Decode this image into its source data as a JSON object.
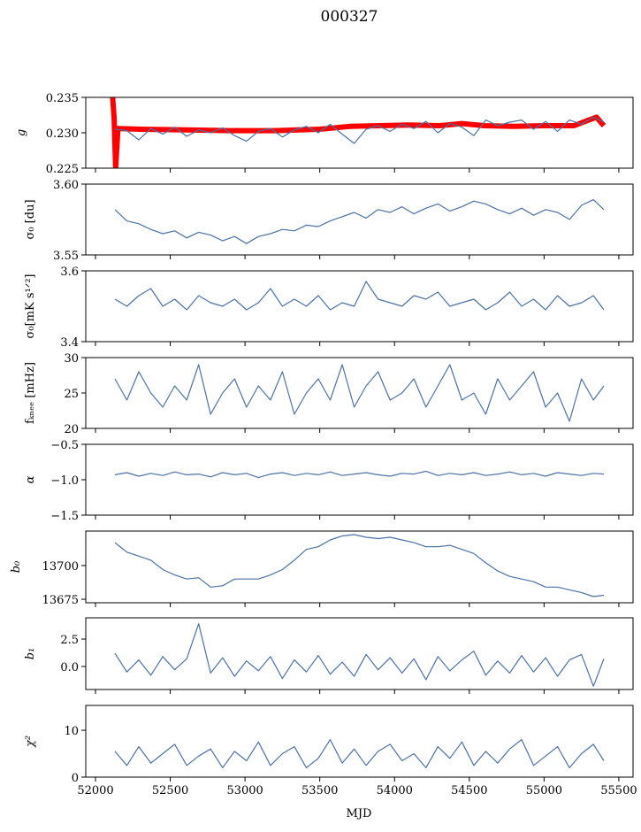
{
  "chart_data": {
    "type": "line",
    "title": "000327",
    "xlabel": "MJD",
    "xlim": [
      51935,
      55595
    ],
    "xticks": [
      52000,
      52500,
      53000,
      53500,
      54000,
      54500,
      55000,
      55500
    ],
    "x": [
      52130,
      52210,
      52290,
      52370,
      52450,
      52530,
      52610,
      52690,
      52770,
      52850,
      52930,
      53010,
      53090,
      53170,
      53250,
      53330,
      53410,
      53490,
      53570,
      53650,
      53730,
      53810,
      53890,
      53970,
      54050,
      54130,
      54210,
      54290,
      54370,
      54450,
      54530,
      54610,
      54690,
      54770,
      54850,
      54930,
      55010,
      55090,
      55170,
      55250,
      55330,
      55400
    ],
    "panels": [
      {
        "ylabel": "g",
        "ylim": [
          0.225,
          0.235
        ],
        "yticks": [
          0.225,
          0.23,
          0.235
        ],
        "yticklabels": [
          "0.225",
          "0.230",
          "0.235"
        ],
        "series": [
          {
            "name": "model",
            "color": "#ff0000",
            "width": 6,
            "x": [
              52115,
              52125,
              52135,
              52150,
              52300,
              52600,
              52900,
              53200,
              53500,
              53700,
              53900,
              54100,
              54300,
              54450,
              54600,
              54800,
              55000,
              55200,
              55300,
              55350,
              55400
            ],
            "values": [
              0.235,
              0.232,
              0.225,
              0.2306,
              0.2305,
              0.2304,
              0.2303,
              0.2303,
              0.2305,
              0.2309,
              0.231,
              0.2311,
              0.231,
              0.2313,
              0.231,
              0.2309,
              0.231,
              0.231,
              0.2318,
              0.2322,
              0.231
            ]
          },
          {
            "name": "gain",
            "color": "#4c72a6",
            "width": 1.2,
            "values": [
              0.2305,
              0.2303,
              0.229,
              0.2306,
              0.2298,
              0.2308,
              0.2295,
              0.2304,
              0.23,
              0.2307,
              0.2296,
              0.2288,
              0.2302,
              0.2306,
              0.2294,
              0.2304,
              0.2309,
              0.23,
              0.2312,
              0.2298,
              0.2285,
              0.2305,
              0.231,
              0.2302,
              0.2312,
              0.2306,
              0.2316,
              0.23,
              0.2313,
              0.2308,
              0.2296,
              0.2318,
              0.231,
              0.2315,
              0.2318,
              0.2305,
              0.2316,
              0.2302,
              0.2318,
              0.2312,
              0.2322,
              0.2315
            ]
          }
        ]
      },
      {
        "ylabel": "σ₀ [du]",
        "ylim": [
          3.55,
          3.6
        ],
        "yticks": [
          3.55,
          3.6
        ],
        "yticklabels": [
          "3.55",
          "3.60"
        ],
        "series": [
          {
            "name": "sigma0_du",
            "color": "#4c72a6",
            "width": 1.2,
            "values": [
              3.582,
              3.574,
              3.572,
              3.568,
              3.565,
              3.567,
              3.562,
              3.566,
              3.564,
              3.56,
              3.563,
              3.558,
              3.563,
              3.565,
              3.568,
              3.567,
              3.571,
              3.57,
              3.574,
              3.577,
              3.58,
              3.576,
              3.582,
              3.58,
              3.584,
              3.579,
              3.583,
              3.586,
              3.581,
              3.584,
              3.588,
              3.586,
              3.582,
              3.579,
              3.583,
              3.578,
              3.582,
              3.58,
              3.575,
              3.585,
              3.589,
              3.582
            ]
          }
        ]
      },
      {
        "ylabel": "σ₀[mK s¹ᐟ²]",
        "ylim": [
          3.4,
          3.6
        ],
        "yticks": [
          3.4,
          3.6
        ],
        "yticklabels": [
          "3.4",
          "3.6"
        ],
        "series": [
          {
            "name": "sigma0_mK",
            "color": "#4c72a6",
            "width": 1.2,
            "values": [
              3.52,
              3.5,
              3.53,
              3.55,
              3.5,
              3.52,
              3.49,
              3.53,
              3.51,
              3.5,
              3.52,
              3.49,
              3.51,
              3.55,
              3.5,
              3.52,
              3.5,
              3.53,
              3.49,
              3.51,
              3.5,
              3.57,
              3.52,
              3.51,
              3.5,
              3.53,
              3.52,
              3.54,
              3.5,
              3.51,
              3.52,
              3.49,
              3.51,
              3.54,
              3.5,
              3.52,
              3.49,
              3.53,
              3.5,
              3.51,
              3.53,
              3.49
            ]
          }
        ]
      },
      {
        "ylabel": "fₖₙₑₑ [mHz]",
        "ylim": [
          20,
          30
        ],
        "yticks": [
          20,
          25,
          30
        ],
        "yticklabels": [
          "20",
          "25",
          "30"
        ],
        "series": [
          {
            "name": "fknee",
            "color": "#4c72a6",
            "width": 1.2,
            "values": [
              27,
              24,
              28,
              25,
              23,
              26,
              24,
              29,
              22,
              25,
              27,
              23,
              26,
              24,
              28,
              22,
              25,
              27,
              24,
              29,
              23,
              26,
              28,
              24,
              25,
              27,
              23,
              26,
              29,
              24,
              25,
              22,
              27,
              24,
              26,
              28,
              23,
              25,
              21,
              27,
              24,
              26
            ]
          }
        ]
      },
      {
        "ylabel": "α",
        "ylim": [
          -1.5,
          -0.5
        ],
        "yticks": [
          -1.5,
          -1.0,
          -0.5
        ],
        "yticklabels": [
          "−1.5",
          "−1.0",
          "−0.5"
        ],
        "series": [
          {
            "name": "alpha",
            "color": "#4c72a6",
            "width": 1.2,
            "values": [
              -0.93,
              -0.9,
              -0.95,
              -0.91,
              -0.94,
              -0.89,
              -0.93,
              -0.92,
              -0.96,
              -0.9,
              -0.93,
              -0.91,
              -0.97,
              -0.92,
              -0.9,
              -0.94,
              -0.91,
              -0.93,
              -0.89,
              -0.94,
              -0.92,
              -0.9,
              -0.93,
              -0.95,
              -0.91,
              -0.92,
              -0.88,
              -0.94,
              -0.91,
              -0.93,
              -0.9,
              -0.94,
              -0.92,
              -0.89,
              -0.93,
              -0.91,
              -0.95,
              -0.9,
              -0.92,
              -0.94,
              -0.91,
              -0.92
            ]
          }
        ]
      },
      {
        "ylabel": "b₀",
        "ylim": [
          13672.4,
          13725.6
        ],
        "yticks": [
          13675,
          13700
        ],
        "yticklabels": [
          "13675",
          "13700"
        ],
        "series": [
          {
            "name": "b0",
            "color": "#4c72a6",
            "width": 1.2,
            "values": [
              13717,
              13710,
              13707,
              13704,
              13697,
              13693,
              13690,
              13691,
              13684,
              13685,
              13690,
              13690,
              13690,
              13693,
              13697,
              13704,
              13712,
              13714,
              13719,
              13722,
              13723,
              13721,
              13720,
              13721,
              13719,
              13717,
              13714,
              13714,
              13715,
              13712,
              13709,
              13702,
              13696,
              13692,
              13690,
              13688,
              13684,
              13684,
              13682,
              13680,
              13677,
              13678
            ]
          }
        ]
      },
      {
        "ylabel": "b₁",
        "ylim": [
          -2.1,
          4.44
        ],
        "yticks": [
          0.0,
          2.5
        ],
        "yticklabels": [
          "0.0",
          "2.5"
        ],
        "series": [
          {
            "name": "b1",
            "color": "#4c72a6",
            "width": 1.2,
            "values": [
              1.2,
              -0.5,
              0.6,
              -0.8,
              0.9,
              -0.3,
              0.7,
              3.9,
              -0.6,
              0.8,
              -0.9,
              0.5,
              -0.4,
              0.9,
              -1.1,
              0.6,
              -0.5,
              1.0,
              -0.7,
              0.4,
              -0.9,
              1.1,
              -0.3,
              0.8,
              -0.6,
              0.7,
              -1.2,
              0.9,
              -0.4,
              0.6,
              1.4,
              -0.8,
              0.5,
              -0.6,
              1.0,
              -0.5,
              0.8,
              -0.9,
              0.6,
              1.1,
              -1.8,
              0.7
            ]
          }
        ]
      },
      {
        "ylabel": "χ²",
        "ylim": [
          0,
          15.3
        ],
        "yticks": [
          0,
          10
        ],
        "yticklabels": [
          "0",
          "10"
        ],
        "series": [
          {
            "name": "chi2",
            "color": "#4c72a6",
            "width": 1.2,
            "values": [
              5.5,
              2.5,
              6.5,
              3.0,
              5.0,
              7.0,
              2.5,
              4.5,
              6.0,
              2.0,
              5.5,
              3.5,
              7.5,
              2.5,
              5.0,
              6.5,
              2.0,
              4.0,
              8.0,
              3.0,
              6.0,
              2.5,
              5.5,
              7.0,
              3.5,
              5.0,
              2.0,
              6.5,
              4.0,
              7.5,
              2.5,
              5.5,
              3.0,
              6.0,
              8.0,
              2.5,
              4.5,
              6.5,
              2.0,
              5.0,
              7.0,
              3.5
            ]
          }
        ]
      }
    ]
  }
}
